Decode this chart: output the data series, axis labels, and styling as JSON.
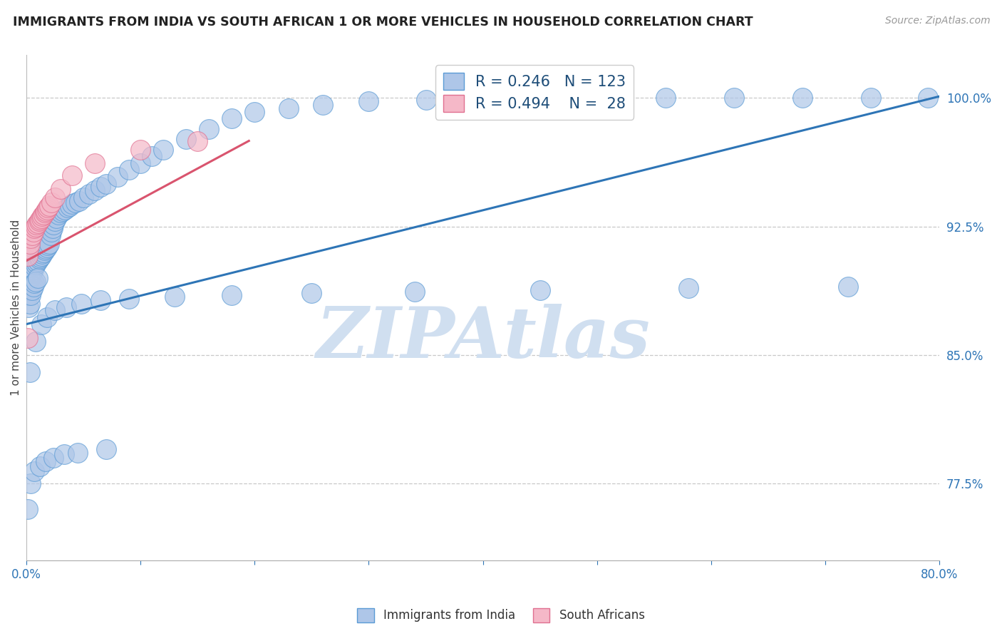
{
  "title": "IMMIGRANTS FROM INDIA VS SOUTH AFRICAN 1 OR MORE VEHICLES IN HOUSEHOLD CORRELATION CHART",
  "source": "Source: ZipAtlas.com",
  "ylabel": "1 or more Vehicles in Household",
  "legend_india": "Immigrants from India",
  "legend_sa": "South Africans",
  "R_india": 0.246,
  "N_india": 123,
  "R_sa": 0.494,
  "N_sa": 28,
  "color_india_fill": "#aec6e8",
  "color_india_edge": "#5b9bd5",
  "color_sa_fill": "#f5b8c8",
  "color_sa_edge": "#e07090",
  "color_india_line": "#2e75b6",
  "color_sa_line": "#d9546e",
  "color_text_blue": "#2e75b6",
  "color_legend_text": "#1f4e79",
  "xmin": 0.0,
  "xmax": 0.8,
  "ymin": 0.73,
  "ymax": 1.025,
  "ytick_values": [
    1.0,
    0.925,
    0.85,
    0.775
  ],
  "ytick_labels": [
    "100.0%",
    "92.5%",
    "85.0%",
    "77.5%"
  ],
  "india_trendline": [
    0.0,
    0.868,
    0.8,
    1.001
  ],
  "sa_trendline": [
    0.0,
    0.905,
    0.195,
    0.975
  ],
  "background_color": "#ffffff",
  "grid_color": "#c8c8c8",
  "watermark_text": "ZIPAtlas",
  "watermark_color": "#d0dff0",
  "india_x": [
    0.001,
    0.001,
    0.001,
    0.002,
    0.002,
    0.002,
    0.002,
    0.003,
    0.003,
    0.003,
    0.003,
    0.004,
    0.004,
    0.004,
    0.005,
    0.005,
    0.005,
    0.006,
    0.006,
    0.006,
    0.007,
    0.007,
    0.007,
    0.008,
    0.008,
    0.008,
    0.009,
    0.009,
    0.01,
    0.01,
    0.01,
    0.011,
    0.011,
    0.012,
    0.012,
    0.013,
    0.013,
    0.014,
    0.014,
    0.015,
    0.015,
    0.016,
    0.016,
    0.017,
    0.017,
    0.018,
    0.018,
    0.019,
    0.019,
    0.02,
    0.02,
    0.021,
    0.022,
    0.023,
    0.024,
    0.025,
    0.026,
    0.028,
    0.03,
    0.032,
    0.034,
    0.036,
    0.038,
    0.04,
    0.043,
    0.046,
    0.05,
    0.055,
    0.06,
    0.065,
    0.07,
    0.08,
    0.09,
    0.1,
    0.11,
    0.12,
    0.14,
    0.16,
    0.18,
    0.2,
    0.23,
    0.26,
    0.3,
    0.35,
    0.4,
    0.45,
    0.5,
    0.56,
    0.62,
    0.68,
    0.74,
    0.79,
    0.003,
    0.008,
    0.013,
    0.018,
    0.025,
    0.035,
    0.048,
    0.065,
    0.09,
    0.13,
    0.18,
    0.25,
    0.34,
    0.45,
    0.58,
    0.72,
    0.001,
    0.004,
    0.007,
    0.012,
    0.017,
    0.024,
    0.033,
    0.045,
    0.07
  ],
  "india_y": [
    0.9,
    0.895,
    0.885,
    0.9,
    0.895,
    0.885,
    0.878,
    0.905,
    0.895,
    0.888,
    0.88,
    0.905,
    0.895,
    0.885,
    0.908,
    0.898,
    0.888,
    0.91,
    0.9,
    0.89,
    0.912,
    0.902,
    0.892,
    0.913,
    0.903,
    0.893,
    0.914,
    0.904,
    0.915,
    0.905,
    0.895,
    0.916,
    0.906,
    0.917,
    0.907,
    0.918,
    0.908,
    0.919,
    0.909,
    0.92,
    0.91,
    0.921,
    0.911,
    0.922,
    0.912,
    0.923,
    0.913,
    0.924,
    0.914,
    0.925,
    0.915,
    0.92,
    0.922,
    0.924,
    0.926,
    0.928,
    0.93,
    0.932,
    0.933,
    0.934,
    0.935,
    0.936,
    0.937,
    0.938,
    0.939,
    0.94,
    0.942,
    0.944,
    0.946,
    0.948,
    0.95,
    0.954,
    0.958,
    0.962,
    0.966,
    0.97,
    0.976,
    0.982,
    0.988,
    0.992,
    0.994,
    0.996,
    0.998,
    0.999,
    1.0,
    1.0,
    1.0,
    1.0,
    1.0,
    1.0,
    1.0,
    1.0,
    0.84,
    0.858,
    0.868,
    0.872,
    0.876,
    0.878,
    0.88,
    0.882,
    0.883,
    0.884,
    0.885,
    0.886,
    0.887,
    0.888,
    0.889,
    0.89,
    0.76,
    0.775,
    0.782,
    0.785,
    0.788,
    0.79,
    0.792,
    0.793,
    0.795
  ],
  "sa_x": [
    0.001,
    0.002,
    0.003,
    0.004,
    0.005,
    0.006,
    0.007,
    0.008,
    0.009,
    0.01,
    0.011,
    0.012,
    0.013,
    0.014,
    0.015,
    0.016,
    0.017,
    0.018,
    0.019,
    0.02,
    0.022,
    0.025,
    0.03,
    0.04,
    0.06,
    0.1,
    0.15,
    0.001
  ],
  "sa_y": [
    0.908,
    0.912,
    0.915,
    0.918,
    0.92,
    0.922,
    0.924,
    0.925,
    0.926,
    0.927,
    0.928,
    0.929,
    0.93,
    0.931,
    0.932,
    0.933,
    0.934,
    0.935,
    0.936,
    0.937,
    0.939,
    0.942,
    0.947,
    0.955,
    0.962,
    0.97,
    0.975,
    0.86
  ]
}
